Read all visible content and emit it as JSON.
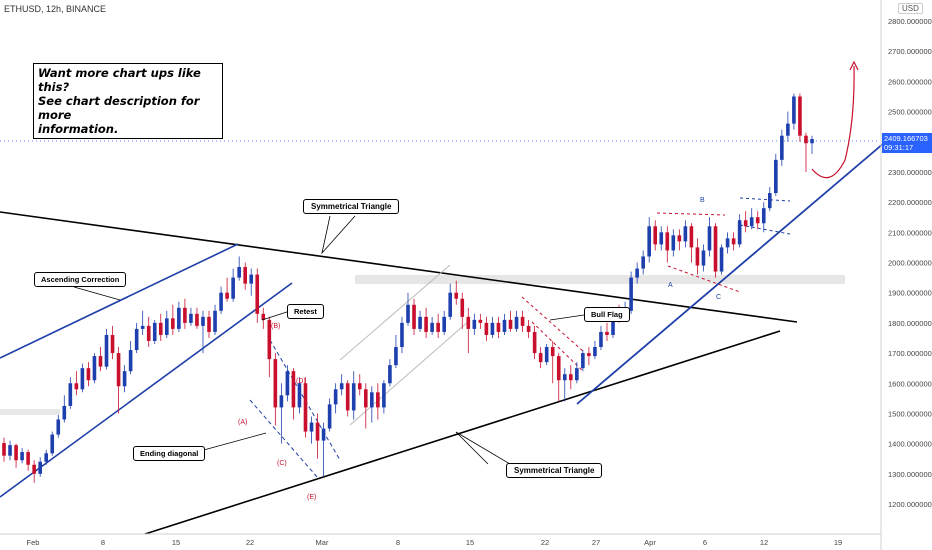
{
  "header": {
    "symbol_line": "ETHUSD, 12h, BINANCE",
    "currency_badge": "USD"
  },
  "promo": {
    "lines": [
      "Want more chart ups like this?",
      "See chart description for more",
      "information."
    ]
  },
  "price_tag": {
    "price": "2409.166703",
    "countdown": "09:31:17",
    "color": "#2962ff"
  },
  "colors": {
    "up_candle": "#1e40af",
    "down_candle": "#c8102e",
    "trendline": "#000000",
    "channel": "#1e3fa8",
    "wave_label": "#c8102e",
    "abc_label": "#1e3fa8",
    "zone": "#e6e6e6"
  },
  "annotations": {
    "ascending_correction": "Ascending Correction",
    "symmetrical_triangle_top": "Symmetrical Triangle",
    "symmetrical_triangle_bottom": "Symmetrical Triangle",
    "retest": "Retest",
    "ending_diagonal": "Ending diagonal",
    "bull_flag": "Bull Flag",
    "waves": [
      "(A)",
      "(B)",
      "(C)",
      "(D)",
      "(E)"
    ],
    "abc": [
      "A",
      "B",
      "C"
    ]
  },
  "chart_data": {
    "type": "candlestick",
    "title": "ETHUSD, 12h, BINANCE",
    "y_unit": "USD",
    "ylim": [
      1100,
      2900
    ],
    "y_ticks": [
      "2800.000000",
      "2700.000000",
      "2600.000000",
      "2500.000000",
      "2400.000000",
      "2300.000000",
      "2200.000000",
      "2100.000000",
      "2000.000000",
      "1900.000000",
      "1800.000000",
      "1700.000000",
      "1600.000000",
      "1500.000000",
      "1400.000000",
      "1300.000000",
      "1200.000000"
    ],
    "x_ticks": [
      "Feb",
      "8",
      "15",
      "22",
      "Mar",
      "8",
      "15",
      "22",
      "27",
      "Apr",
      "6",
      "12",
      "19"
    ],
    "last_price": 2409.166703,
    "candles": [
      [
        1402,
        1360,
        1420,
        1340
      ],
      [
        1360,
        1395,
        1410,
        1345
      ],
      [
        1395,
        1345,
        1400,
        1320
      ],
      [
        1345,
        1372,
        1385,
        1335
      ],
      [
        1372,
        1330,
        1380,
        1310
      ],
      [
        1330,
        1300,
        1345,
        1270
      ],
      [
        1300,
        1340,
        1355,
        1290
      ],
      [
        1340,
        1368,
        1380,
        1330
      ],
      [
        1368,
        1430,
        1440,
        1360
      ],
      [
        1430,
        1480,
        1495,
        1420
      ],
      [
        1480,
        1525,
        1560,
        1470
      ],
      [
        1525,
        1600,
        1620,
        1515
      ],
      [
        1600,
        1580,
        1640,
        1560
      ],
      [
        1580,
        1650,
        1665,
        1570
      ],
      [
        1650,
        1610,
        1670,
        1590
      ],
      [
        1610,
        1690,
        1700,
        1600
      ],
      [
        1690,
        1655,
        1720,
        1640
      ],
      [
        1655,
        1760,
        1780,
        1645
      ],
      [
        1760,
        1700,
        1790,
        1680
      ],
      [
        1700,
        1590,
        1720,
        1500
      ],
      [
        1590,
        1640,
        1660,
        1570
      ],
      [
        1640,
        1710,
        1740,
        1630
      ],
      [
        1710,
        1780,
        1800,
        1700
      ],
      [
        1780,
        1790,
        1840,
        1760
      ],
      [
        1790,
        1740,
        1820,
        1720
      ],
      [
        1740,
        1800,
        1810,
        1730
      ],
      [
        1800,
        1760,
        1830,
        1740
      ],
      [
        1760,
        1815,
        1840,
        1750
      ],
      [
        1815,
        1780,
        1860,
        1760
      ],
      [
        1780,
        1850,
        1870,
        1770
      ],
      [
        1850,
        1800,
        1880,
        1780
      ],
      [
        1800,
        1830,
        1850,
        1790
      ],
      [
        1830,
        1790,
        1850,
        1780
      ],
      [
        1790,
        1820,
        1840,
        1700
      ],
      [
        1820,
        1770,
        1840,
        1750
      ],
      [
        1770,
        1840,
        1860,
        1760
      ],
      [
        1840,
        1900,
        1920,
        1830
      ],
      [
        1900,
        1880,
        1950,
        1870
      ],
      [
        1880,
        1950,
        1980,
        1870
      ],
      [
        1950,
        1985,
        2020,
        1940
      ],
      [
        1985,
        1930,
        2000,
        1910
      ],
      [
        1930,
        1960,
        1980,
        1890
      ],
      [
        1960,
        1830,
        1980,
        1800
      ],
      [
        1830,
        1810,
        1850,
        1780
      ],
      [
        1810,
        1680,
        1820,
        1620
      ],
      [
        1680,
        1520,
        1700,
        1460
      ],
      [
        1520,
        1560,
        1600,
        1400
      ],
      [
        1560,
        1640,
        1660,
        1540
      ],
      [
        1640,
        1520,
        1650,
        1480
      ],
      [
        1520,
        1600,
        1620,
        1500
      ],
      [
        1600,
        1440,
        1620,
        1420
      ],
      [
        1440,
        1470,
        1490,
        1400
      ],
      [
        1470,
        1410,
        1500,
        1350
      ],
      [
        1410,
        1450,
        1470,
        1290
      ],
      [
        1450,
        1530,
        1550,
        1440
      ],
      [
        1530,
        1580,
        1600,
        1500
      ],
      [
        1580,
        1600,
        1630,
        1560
      ],
      [
        1600,
        1510,
        1610,
        1490
      ],
      [
        1510,
        1600,
        1640,
        1480
      ],
      [
        1600,
        1580,
        1630,
        1560
      ],
      [
        1580,
        1520,
        1600,
        1450
      ],
      [
        1520,
        1570,
        1590,
        1470
      ],
      [
        1570,
        1520,
        1600,
        1480
      ],
      [
        1520,
        1600,
        1610,
        1500
      ],
      [
        1600,
        1660,
        1680,
        1590
      ],
      [
        1660,
        1720,
        1760,
        1650
      ],
      [
        1720,
        1800,
        1820,
        1700
      ],
      [
        1800,
        1860,
        1900,
        1790
      ],
      [
        1860,
        1780,
        1880,
        1760
      ],
      [
        1780,
        1820,
        1840,
        1770
      ],
      [
        1820,
        1770,
        1850,
        1750
      ],
      [
        1770,
        1800,
        1820,
        1760
      ],
      [
        1800,
        1770,
        1830,
        1750
      ],
      [
        1770,
        1820,
        1840,
        1760
      ],
      [
        1820,
        1900,
        1930,
        1810
      ],
      [
        1900,
        1880,
        1940,
        1860
      ],
      [
        1880,
        1820,
        1900,
        1780
      ],
      [
        1820,
        1780,
        1850,
        1700
      ],
      [
        1780,
        1810,
        1830,
        1760
      ],
      [
        1810,
        1800,
        1830,
        1780
      ],
      [
        1800,
        1760,
        1820,
        1740
      ],
      [
        1760,
        1800,
        1820,
        1750
      ],
      [
        1800,
        1770,
        1820,
        1750
      ],
      [
        1770,
        1810,
        1830,
        1760
      ],
      [
        1810,
        1780,
        1840,
        1770
      ],
      [
        1780,
        1820,
        1840,
        1770
      ],
      [
        1820,
        1790,
        1840,
        1770
      ],
      [
        1790,
        1770,
        1810,
        1750
      ],
      [
        1770,
        1700,
        1790,
        1680
      ],
      [
        1700,
        1670,
        1720,
        1650
      ],
      [
        1670,
        1720,
        1730,
        1660
      ],
      [
        1720,
        1690,
        1740,
        1600
      ],
      [
        1690,
        1610,
        1700,
        1540
      ],
      [
        1610,
        1630,
        1650,
        1540
      ],
      [
        1630,
        1610,
        1660,
        1580
      ],
      [
        1610,
        1650,
        1670,
        1600
      ],
      [
        1650,
        1700,
        1710,
        1640
      ],
      [
        1700,
        1690,
        1720,
        1660
      ],
      [
        1690,
        1720,
        1740,
        1680
      ],
      [
        1720,
        1770,
        1790,
        1710
      ],
      [
        1770,
        1760,
        1800,
        1740
      ],
      [
        1760,
        1830,
        1850,
        1750
      ],
      [
        1830,
        1820,
        1860,
        1800
      ],
      [
        1820,
        1840,
        1870,
        1810
      ],
      [
        1840,
        1950,
        1970,
        1830
      ],
      [
        1950,
        1980,
        2000,
        1930
      ],
      [
        1980,
        2020,
        2040,
        1960
      ],
      [
        2020,
        2120,
        2150,
        2000
      ],
      [
        2120,
        2060,
        2140,
        2040
      ],
      [
        2060,
        2100,
        2120,
        2040
      ],
      [
        2100,
        2040,
        2120,
        2000
      ],
      [
        2040,
        2090,
        2110,
        2020
      ],
      [
        2090,
        2070,
        2110,
        2040
      ],
      [
        2070,
        2120,
        2140,
        2050
      ],
      [
        2120,
        2050,
        2130,
        2000
      ],
      [
        2050,
        1990,
        2080,
        1960
      ],
      [
        1990,
        2040,
        2060,
        1970
      ],
      [
        2040,
        2120,
        2150,
        2020
      ],
      [
        2120,
        1970,
        2130,
        1950
      ],
      [
        1970,
        2050,
        2060,
        1960
      ],
      [
        2050,
        2080,
        2100,
        2030
      ],
      [
        2080,
        2060,
        2100,
        2040
      ],
      [
        2060,
        2140,
        2160,
        2050
      ],
      [
        2140,
        2120,
        2170,
        2100
      ],
      [
        2120,
        2150,
        2180,
        2110
      ],
      [
        2150,
        2130,
        2170,
        2110
      ],
      [
        2130,
        2180,
        2200,
        2100
      ],
      [
        2180,
        2230,
        2250,
        2170
      ],
      [
        2230,
        2340,
        2360,
        2220
      ],
      [
        2340,
        2420,
        2440,
        2320
      ],
      [
        2420,
        2460,
        2500,
        2400
      ],
      [
        2460,
        2550,
        2560,
        2440
      ],
      [
        2550,
        2420,
        2560,
        2400
      ],
      [
        2420,
        2395,
        2430,
        2300
      ],
      [
        2395,
        2409,
        2420,
        2360
      ]
    ]
  }
}
